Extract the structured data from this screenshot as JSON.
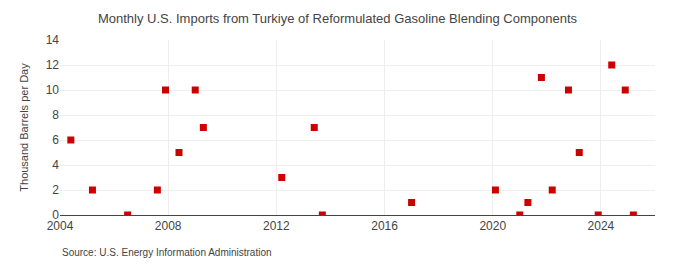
{
  "chart_data": {
    "type": "scatter",
    "title": "Monthly U.S. Imports from Turkiye of Reformulated Gasoline Blending Components",
    "ylabel": "Thousand Barrels per Day",
    "source": "Source: U.S. Energy Information Administration",
    "x": [
      2004.4,
      2005.2,
      2006.5,
      2007.6,
      2007.9,
      2008.4,
      2009.0,
      2009.3,
      2012.2,
      2013.4,
      2013.7,
      2017.0,
      2020.1,
      2021.0,
      2021.3,
      2021.8,
      2022.2,
      2022.8,
      2023.2,
      2023.9,
      2024.4,
      2024.9,
      2025.2
    ],
    "values": [
      6,
      2,
      0,
      2,
      10,
      5,
      10,
      7,
      3,
      7,
      0,
      1,
      2,
      0,
      1,
      11,
      2,
      10,
      5,
      0,
      12,
      10,
      0
    ],
    "color": "#cc0000",
    "marker": "square",
    "xlim": [
      2004,
      2026
    ],
    "xticks": [
      2004,
      2008,
      2012,
      2016,
      2020,
      2024
    ],
    "ylim": [
      0,
      14
    ],
    "yticks": [
      0,
      2,
      4,
      6,
      8,
      10,
      12,
      14
    ],
    "grid": true
  }
}
